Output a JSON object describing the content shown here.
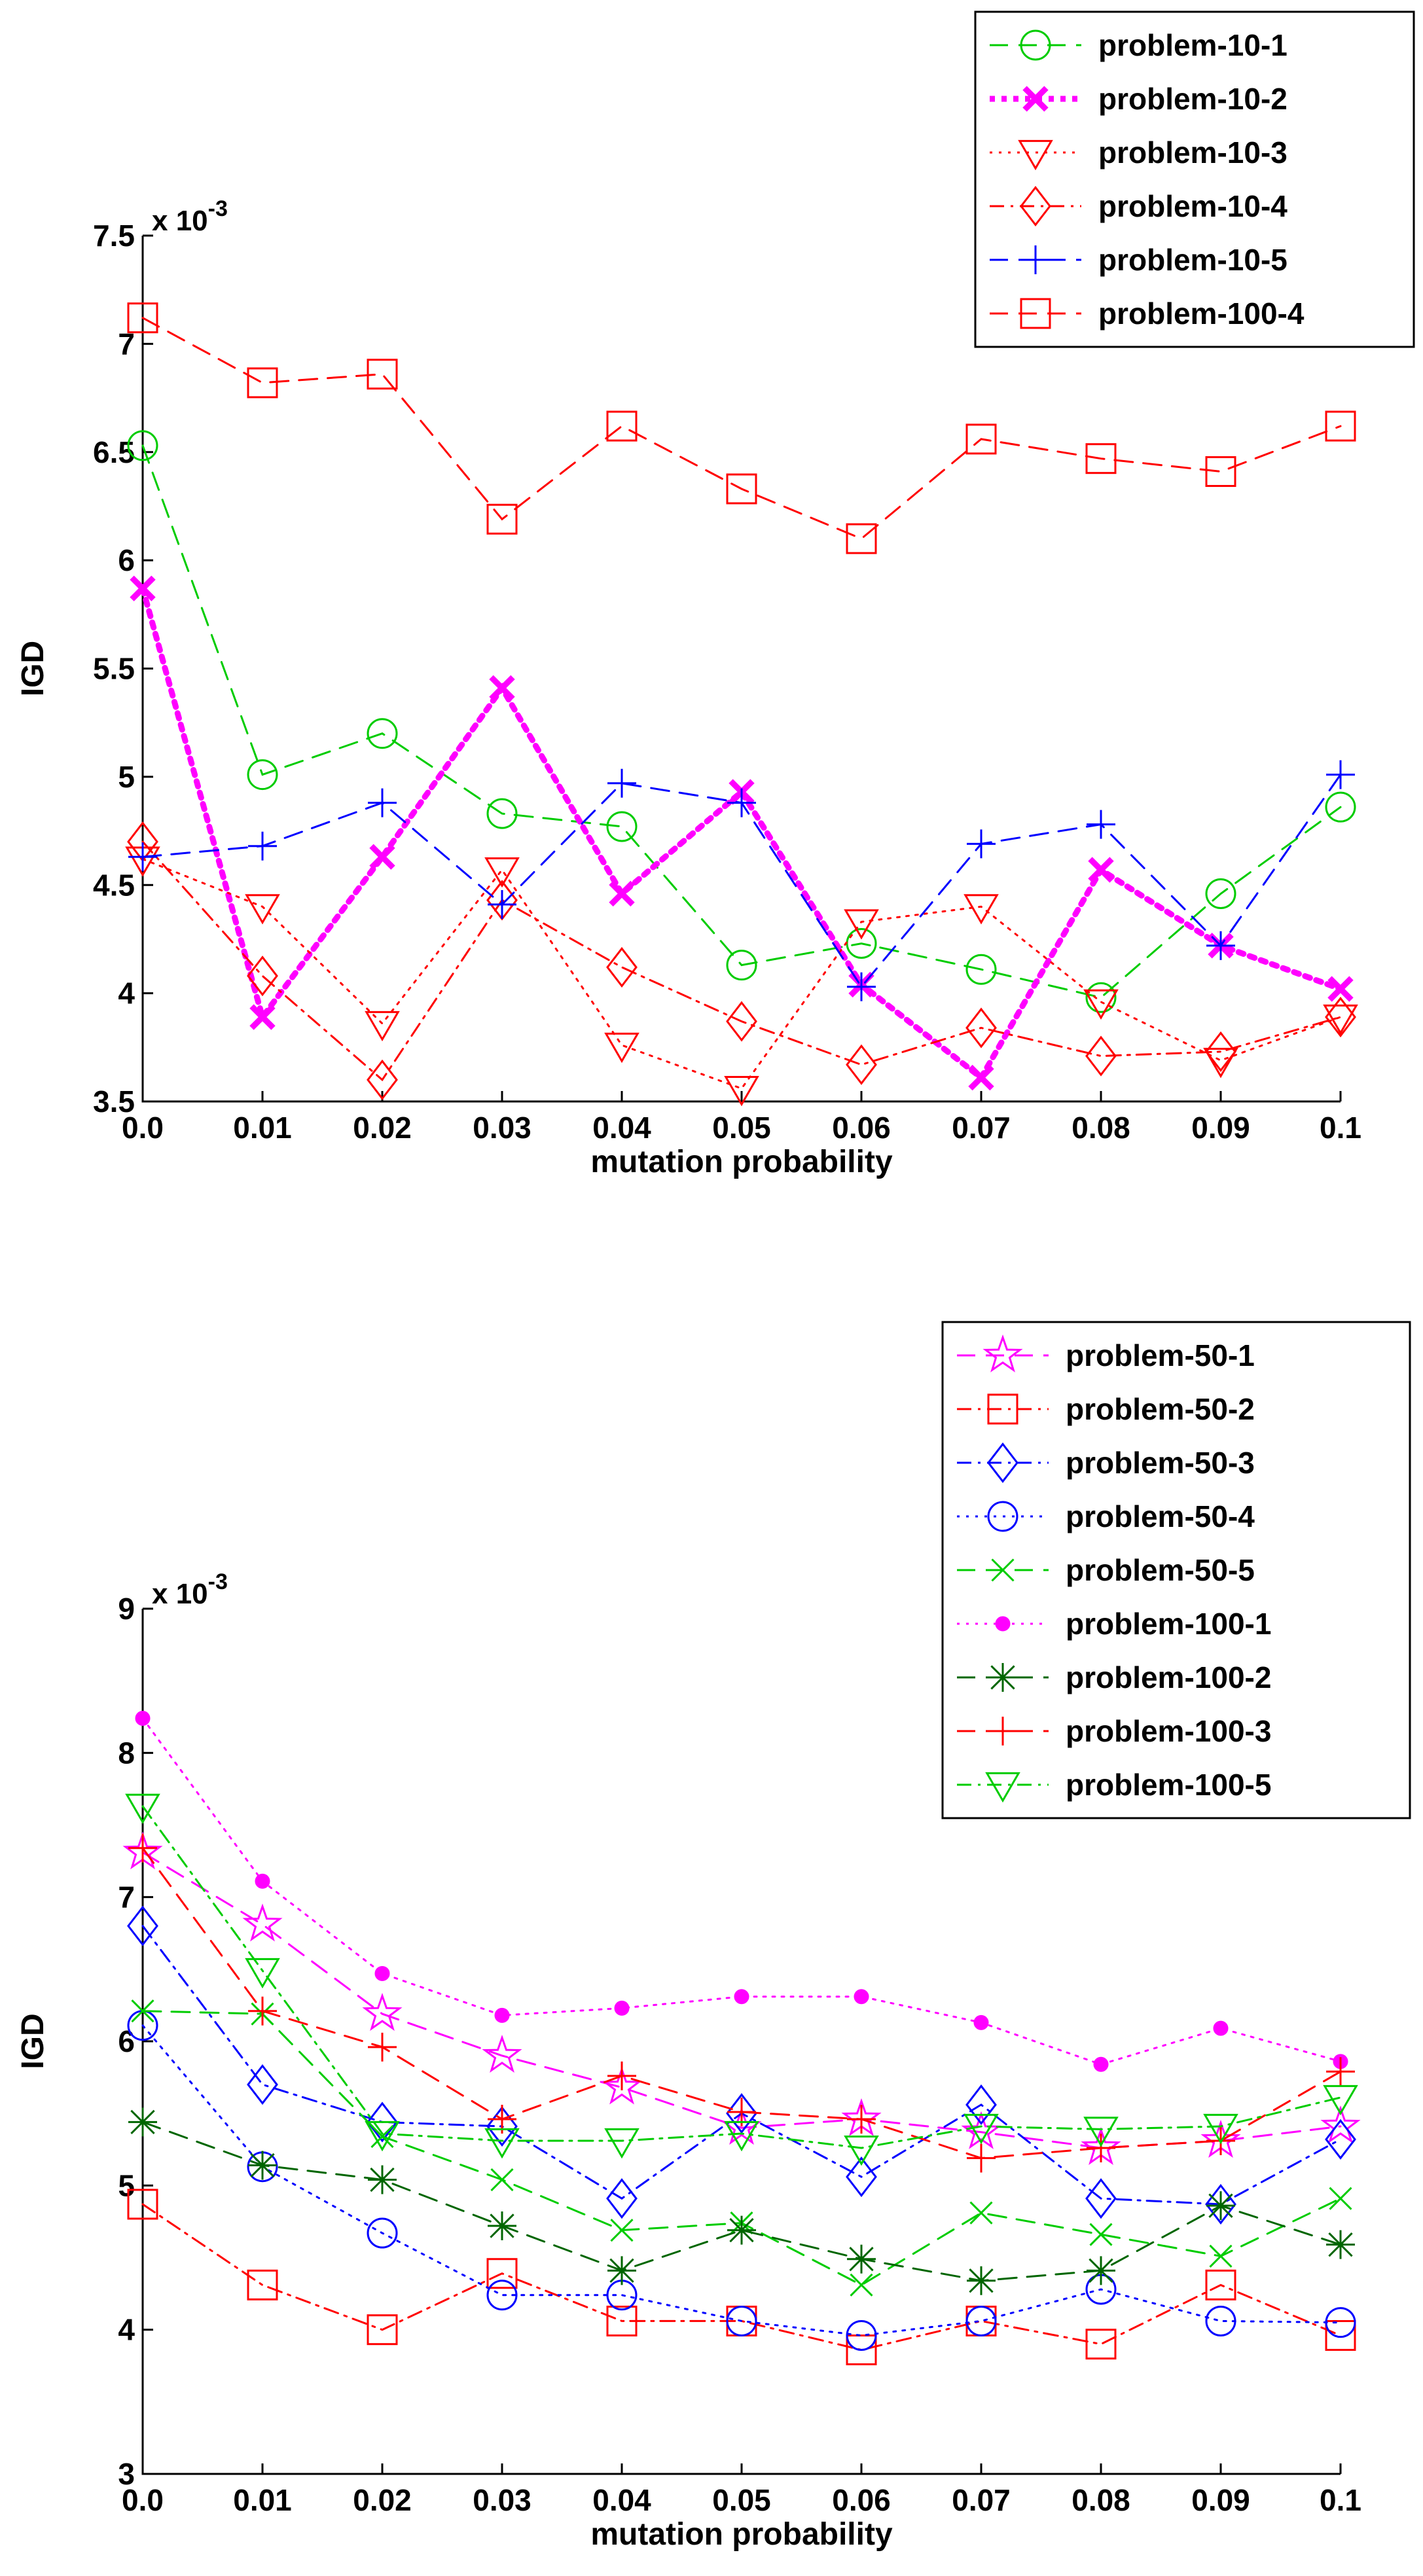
{
  "chart_data": [
    {
      "type": "line",
      "xlabel": "mutation probability",
      "ylabel": "IGD",
      "exponent_label": "x 10",
      "exponent_power": "-3",
      "ylim": [
        3.5,
        7.5
      ],
      "xlim": [
        0.0,
        0.1
      ],
      "x_ticks": [
        "0.0",
        "0.01",
        "0.02",
        "0.03",
        "0.04",
        "0.05",
        "0.06",
        "0.07",
        "0.08",
        "0.09",
        "0.1"
      ],
      "y_ticks": [
        "3.5",
        "4",
        "4.5",
        "5",
        "5.5",
        "6",
        "6.5",
        "7",
        "7.5"
      ],
      "x": [
        0.0,
        0.01,
        0.02,
        0.03,
        0.04,
        0.05,
        0.06,
        0.07,
        0.08,
        0.09,
        0.1
      ],
      "legend_position": "top-right",
      "series": [
        {
          "name": "problem-10-1",
          "color": "#00cc00",
          "dash": "dashed",
          "marker": "circle",
          "values": [
            6.53,
            5.01,
            5.2,
            4.83,
            4.77,
            4.13,
            4.23,
            4.11,
            3.98,
            4.46,
            4.86
          ]
        },
        {
          "name": "problem-10-2",
          "color": "#ff00ff",
          "dash": "dotted-bold",
          "marker": "x",
          "values": [
            5.87,
            3.89,
            4.63,
            5.41,
            4.46,
            4.93,
            4.04,
            3.61,
            4.57,
            4.22,
            4.02
          ]
        },
        {
          "name": "problem-10-3",
          "color": "#ff0000",
          "dash": "dotted",
          "marker": "triangle-down",
          "values": [
            4.62,
            4.4,
            3.86,
            4.57,
            3.76,
            3.56,
            4.33,
            4.4,
            3.96,
            3.69,
            3.89
          ]
        },
        {
          "name": "problem-10-4",
          "color": "#ff0000",
          "dash": "dashdot",
          "marker": "diamond",
          "values": [
            4.7,
            4.08,
            3.6,
            4.43,
            4.12,
            3.87,
            3.67,
            3.84,
            3.71,
            3.73,
            3.89
          ]
        },
        {
          "name": "problem-10-5",
          "color": "#0000ff",
          "dash": "dashed",
          "marker": "plus",
          "values": [
            4.63,
            4.68,
            4.88,
            4.41,
            4.97,
            4.88,
            4.03,
            4.69,
            4.78,
            4.22,
            5.01
          ]
        },
        {
          "name": "problem-100-4",
          "color": "#ff0000",
          "dash": "dashed",
          "marker": "square",
          "values": [
            7.12,
            6.82,
            6.86,
            6.19,
            6.62,
            6.33,
            6.1,
            6.56,
            6.47,
            6.41,
            6.62
          ]
        }
      ]
    },
    {
      "type": "line",
      "xlabel": "mutation probability",
      "ylabel": "IGD",
      "exponent_label": "x 10",
      "exponent_power": "-3",
      "ylim": [
        3,
        9
      ],
      "xlim": [
        0.0,
        0.1
      ],
      "x_ticks": [
        "0.0",
        "0.01",
        "0.02",
        "0.03",
        "0.04",
        "0.05",
        "0.06",
        "0.07",
        "0.08",
        "0.09",
        "0.1"
      ],
      "y_ticks": [
        "3",
        "4",
        "5",
        "6",
        "7",
        "8",
        "9"
      ],
      "x": [
        0.0,
        0.01,
        0.02,
        0.03,
        0.04,
        0.05,
        0.06,
        0.07,
        0.08,
        0.09,
        0.1
      ],
      "legend_position": "top-right",
      "series": [
        {
          "name": "problem-50-1",
          "color": "#ff00ff",
          "dash": "dashed",
          "marker": "star",
          "values": [
            7.31,
            6.81,
            6.19,
            5.9,
            5.68,
            5.4,
            5.46,
            5.37,
            5.26,
            5.31,
            5.41
          ]
        },
        {
          "name": "problem-50-2",
          "color": "#ff0000",
          "dash": "dashdot",
          "marker": "square",
          "values": [
            4.87,
            4.31,
            4.0,
            4.39,
            4.06,
            4.06,
            3.86,
            4.06,
            3.9,
            4.31,
            3.96
          ]
        },
        {
          "name": "problem-50-3",
          "color": "#0000ff",
          "dash": "dashdot",
          "marker": "diamond",
          "values": [
            6.8,
            5.7,
            5.44,
            5.41,
            4.91,
            5.5,
            5.06,
            5.56,
            4.91,
            4.87,
            5.32
          ]
        },
        {
          "name": "problem-50-4",
          "color": "#0000ff",
          "dash": "dotted",
          "marker": "circle",
          "values": [
            6.11,
            5.13,
            4.67,
            4.24,
            4.24,
            4.06,
            3.96,
            4.06,
            4.28,
            4.06,
            4.05
          ]
        },
        {
          "name": "problem-50-5",
          "color": "#00cc00",
          "dash": "dashed",
          "marker": "x",
          "values": [
            6.21,
            6.19,
            5.34,
            5.04,
            4.69,
            4.74,
            4.31,
            4.81,
            4.66,
            4.51,
            4.91
          ]
        },
        {
          "name": "problem-100-1",
          "color": "#ff00ff",
          "dash": "dotted",
          "marker": "dot",
          "values": [
            8.24,
            7.11,
            6.47,
            6.18,
            6.23,
            6.31,
            6.31,
            6.13,
            5.84,
            6.09,
            5.86
          ]
        },
        {
          "name": "problem-100-2",
          "color": "#006600",
          "dash": "dashed",
          "marker": "asterisk",
          "values": [
            5.44,
            5.14,
            5.04,
            4.72,
            4.41,
            4.69,
            4.49,
            4.34,
            4.41,
            4.86,
            4.59
          ]
        },
        {
          "name": "problem-100-3",
          "color": "#ff0000",
          "dash": "dashed",
          "marker": "plus",
          "values": [
            7.34,
            6.21,
            5.96,
            5.46,
            5.76,
            5.51,
            5.46,
            5.19,
            5.26,
            5.31,
            5.79
          ]
        },
        {
          "name": "problem-100-5",
          "color": "#00cc00",
          "dash": "dashdot",
          "marker": "triangle-down",
          "values": [
            7.63,
            6.49,
            5.36,
            5.31,
            5.31,
            5.36,
            5.26,
            5.41,
            5.39,
            5.41,
            5.61
          ]
        }
      ]
    }
  ]
}
